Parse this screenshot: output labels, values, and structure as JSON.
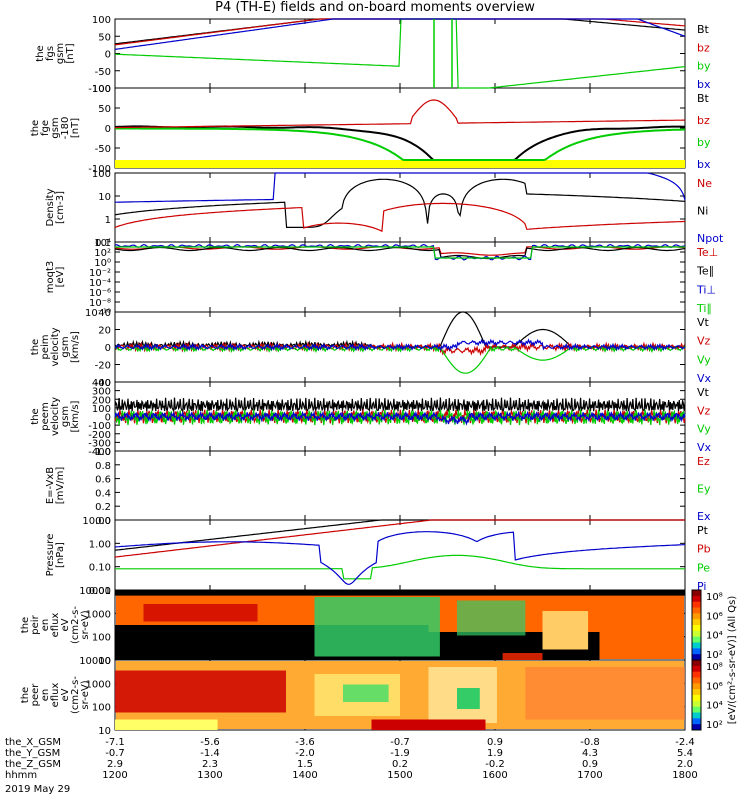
{
  "title": "P4 (TH-E) fields and on-board moments overview",
  "date": "2019 May 29",
  "colors": {
    "black": "#000000",
    "red": "#cc0000",
    "green": "#00cc00",
    "blue": "#0000cc",
    "yellow": "#ffff00"
  },
  "chart_data": {
    "type": "line",
    "x_axis": {
      "rows": [
        {
          "label": "the_X_GSM",
          "values": [
            "-7.1",
            "-5.6",
            "-3.6",
            "-0.7",
            "0.9",
            "-0.8",
            "-2.4"
          ]
        },
        {
          "label": "the_Y_GSM",
          "values": [
            "-0.7",
            "-1.4",
            "-2.0",
            "-1.9",
            "1.9",
            "4.3",
            "5.4"
          ]
        },
        {
          "label": "the_Z_GSM",
          "values": [
            "2.9",
            "2.3",
            "1.5",
            "0.2",
            "-0.2",
            "0.9",
            "2.0"
          ]
        },
        {
          "label": "hhmm",
          "values": [
            "1200",
            "1300",
            "1400",
            "1500",
            "1600",
            "1700",
            "1800"
          ]
        }
      ]
    },
    "panels": [
      {
        "id": "fgs",
        "ylabel": [
          "the",
          "fgs",
          "gsm",
          "[nT]"
        ],
        "yticks": [
          "100",
          "50",
          "0",
          "-50",
          "-100"
        ],
        "ylim": [
          -100,
          100
        ],
        "legend": [
          {
            "name": "Bt",
            "color": "black"
          },
          {
            "name": "bz",
            "color": "red"
          },
          {
            "name": "by",
            "color": "green"
          },
          {
            "name": "bx",
            "color": "blue"
          }
        ]
      },
      {
        "id": "fge",
        "ylabel": [
          "the",
          "fge",
          "gsm",
          "-180",
          "[nT]"
        ],
        "yticks": [
          "100",
          "50",
          "0",
          "-50",
          "-100"
        ],
        "ylim": [
          -120,
          120
        ],
        "legend": [
          {
            "name": "Bt",
            "color": "black"
          },
          {
            "name": "bz",
            "color": "red"
          },
          {
            "name": "by",
            "color": "green"
          },
          {
            "name": "bx",
            "color": "blue"
          }
        ]
      },
      {
        "id": "density",
        "ylabel": [
          "Density",
          "[cm-3]"
        ],
        "yticks": [
          "100",
          "10",
          "1",
          "0.1"
        ],
        "ylim": [
          0.1,
          200
        ],
        "scale": "log",
        "legend": [
          {
            "name": "Ne",
            "color": "red"
          },
          {
            "name": "Ni",
            "color": "black"
          },
          {
            "name": "Npot",
            "color": "blue"
          }
        ]
      },
      {
        "id": "temp",
        "ylabel": [
          "moqt3",
          "[eV]"
        ],
        "yticks": [
          "10⁴",
          "10²",
          "10⁰",
          "10⁻²",
          "10⁻⁴",
          "10⁻⁶",
          "10⁻⁸",
          "10⁻¹⁰"
        ],
        "scale": "log",
        "legend": [
          {
            "name": "Te⊥",
            "color": "red"
          },
          {
            "name": "Te∥",
            "color": "black"
          },
          {
            "name": "Ti⊥",
            "color": "blue"
          },
          {
            "name": "Ti∥",
            "color": "green"
          }
        ]
      },
      {
        "id": "peim",
        "ylabel": [
          "the",
          "peim",
          "velocity",
          "gsm",
          "[km/s]"
        ],
        "yticks": [
          "40",
          "20",
          "0",
          "-20",
          "-40"
        ],
        "ylim": [
          -40,
          40
        ],
        "legend": [
          {
            "name": "Vt",
            "color": "black"
          },
          {
            "name": "Vz",
            "color": "red"
          },
          {
            "name": "Vy",
            "color": "green"
          },
          {
            "name": "Vx",
            "color": "blue"
          }
        ]
      },
      {
        "id": "peem",
        "ylabel": [
          "the",
          "peem",
          "velocity",
          "gsm",
          "[km/s]"
        ],
        "yticks": [
          "400",
          "300",
          "200",
          "100",
          "0",
          "-100",
          "-200",
          "-300",
          "-400"
        ],
        "ylim": [
          -400,
          400
        ],
        "legend": [
          {
            "name": "Vt",
            "color": "black"
          },
          {
            "name": "Vz",
            "color": "red"
          },
          {
            "name": "Vy",
            "color": "green"
          },
          {
            "name": "Vx",
            "color": "blue"
          }
        ]
      },
      {
        "id": "efield",
        "ylabel": [
          "E=-VxB",
          "[mV/m]"
        ],
        "yticks": [
          "1.0",
          "0.8",
          "0.6",
          "0.4",
          "0.2",
          "0.0"
        ],
        "ylim": [
          0,
          1
        ],
        "legend": [
          {
            "name": "Ez",
            "color": "red"
          },
          {
            "name": "Ey",
            "color": "green"
          },
          {
            "name": "Ex",
            "color": "blue"
          }
        ]
      },
      {
        "id": "pressure",
        "ylabel": [
          "Pressure",
          "[nPa]"
        ],
        "yticks": [
          "10.00",
          "1.00",
          "0.10",
          "0.01"
        ],
        "ylim": [
          0.005,
          30
        ],
        "scale": "log",
        "legend": [
          {
            "name": "Pt",
            "color": "black"
          },
          {
            "name": "Pb",
            "color": "red"
          },
          {
            "name": "Pe",
            "color": "green"
          },
          {
            "name": "Pi",
            "color": "blue"
          }
        ]
      },
      {
        "id": "peir",
        "ylabel": [
          "the",
          "peir",
          "en",
          "eflux",
          "eV",
          "(cm2-s-",
          "sr-eV)"
        ],
        "yticks": [
          "10000",
          "1000",
          "100",
          "10"
        ],
        "scale": "log"
      },
      {
        "id": "peer",
        "ylabel": [
          "the",
          "peer",
          "en",
          "eflux",
          "eV",
          "(cm2-s-",
          "sr-eV)"
        ],
        "yticks": [
          "10000",
          "1000",
          "100",
          "10"
        ],
        "scale": "log"
      }
    ],
    "colorbar": {
      "ticks": [
        "10⁸",
        "10⁶",
        "10⁴",
        "10²",
        "10⁰"
      ],
      "label": "[eV/(cm²-s-sr-eV)] (All Qs)"
    }
  }
}
